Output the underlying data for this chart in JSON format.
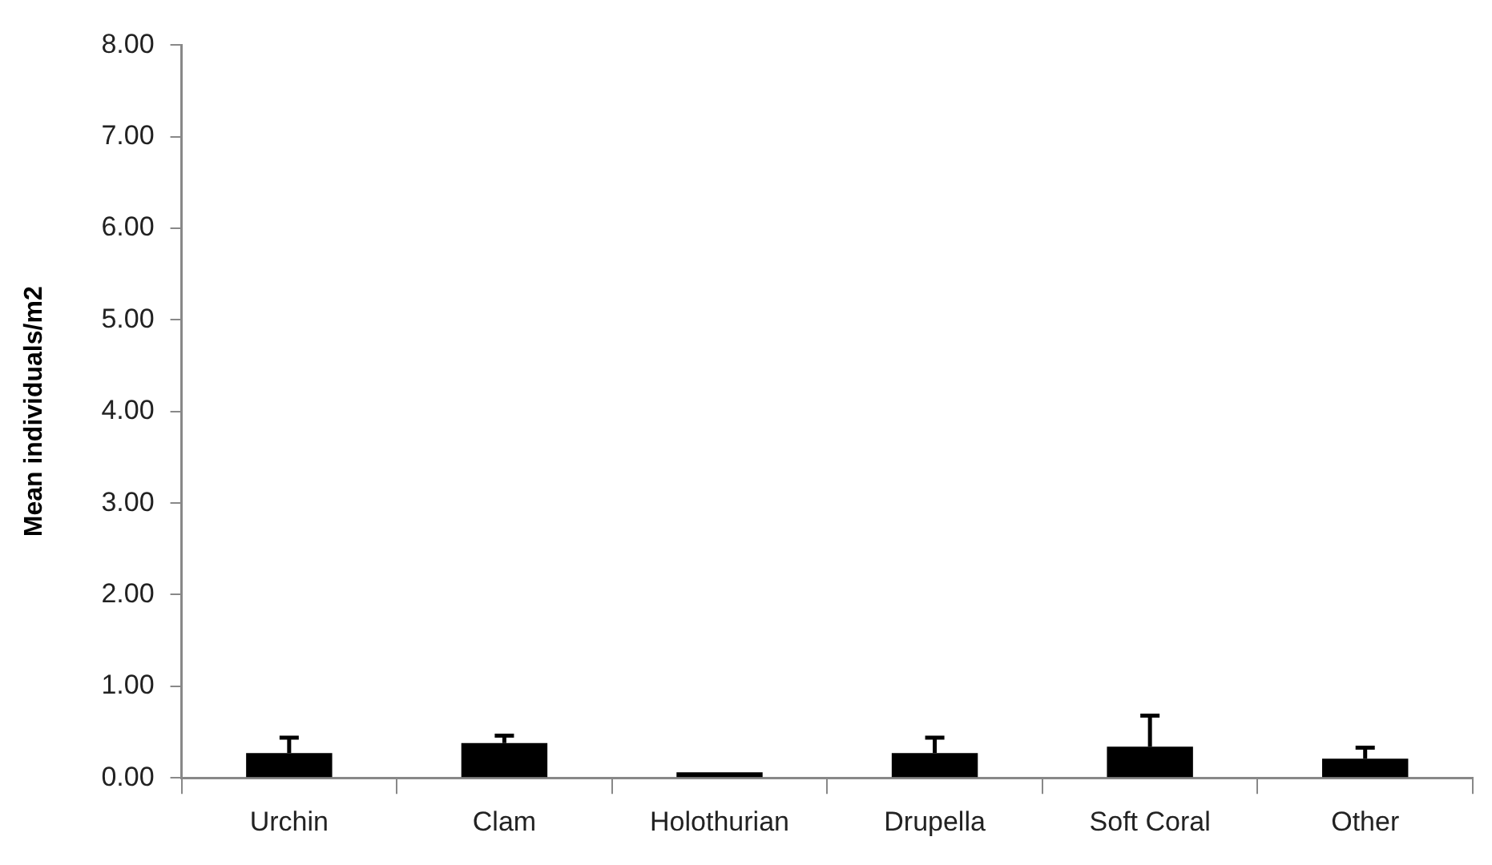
{
  "chart_data": {
    "type": "bar",
    "ylabel": "Mean individuals/m2",
    "categories": [
      "Urchin",
      "Clam",
      "Holothurian",
      "Drupella",
      "Soft Coral",
      "Other"
    ],
    "values": [
      0.27,
      0.38,
      0.06,
      0.27,
      0.34,
      0.21
    ],
    "errors": [
      [
        0.27,
        0.44
      ],
      [
        0.38,
        0.46
      ],
      null,
      [
        0.27,
        0.44
      ],
      [
        0.34,
        0.68
      ],
      [
        0.21,
        0.33
      ]
    ],
    "color": "#000000",
    "ylim": [
      0,
      8
    ],
    "yticks": [
      {
        "value": 0,
        "label": "0.00"
      },
      {
        "value": 1,
        "label": "1.00"
      },
      {
        "value": 2,
        "label": "2.00"
      },
      {
        "value": 3,
        "label": "3.00"
      },
      {
        "value": 4,
        "label": "4.00"
      },
      {
        "value": 5,
        "label": "5.00"
      },
      {
        "value": 6,
        "label": "6.00"
      },
      {
        "value": 7,
        "label": "7.00"
      },
      {
        "value": 8,
        "label": "8.00"
      }
    ],
    "grid": false,
    "legend": false
  }
}
